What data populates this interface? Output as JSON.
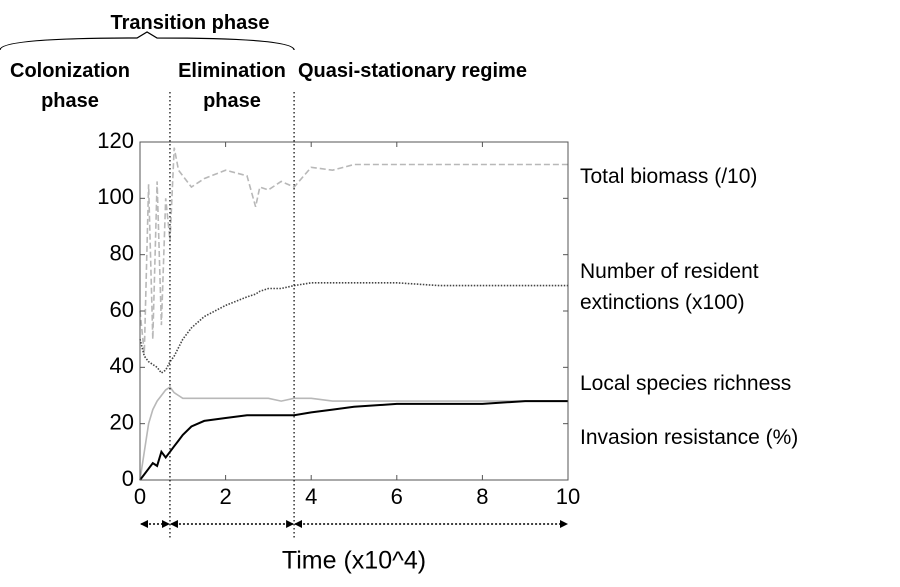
{
  "chart_data": {
    "type": "line",
    "xlabel": "Time (x10^4)",
    "x": [
      0,
      0.1,
      0.2,
      0.3,
      0.4,
      0.5,
      0.6,
      0.7,
      0.8,
      0.9,
      1.0,
      1.2,
      1.5,
      2.0,
      2.5,
      2.7,
      2.8,
      3.0,
      3.3,
      3.6,
      4.0,
      4.5,
      5,
      6,
      7,
      8,
      9,
      10
    ],
    "series": [
      {
        "name": "Total biomass (/10)",
        "color": "#b8b8b8",
        "dash": "dashed",
        "values": [
          60,
          45,
          105,
          50,
          106,
          55,
          100,
          85,
          118,
          110,
          108,
          104,
          107,
          110,
          108,
          97,
          104,
          103,
          106,
          104,
          111,
          110,
          112,
          112,
          112,
          112,
          112,
          112
        ]
      },
      {
        "name": "Number of resident extinctions (x100)",
        "color": "#444444",
        "dash": "dotted",
        "values": [
          50,
          44,
          42,
          41,
          40,
          38,
          39,
          42,
          44,
          47,
          50,
          54,
          58,
          62,
          65,
          66,
          67,
          68,
          68,
          69,
          70,
          70,
          70,
          70,
          69,
          69,
          69,
          69
        ]
      },
      {
        "name": "Local species richness",
        "color": "#b8b8b8",
        "dash": "solid",
        "values": [
          0,
          10,
          20,
          25,
          28,
          30,
          32,
          33,
          31,
          30,
          29,
          29,
          29,
          29,
          29,
          29,
          29,
          29,
          28,
          29,
          29,
          28,
          28,
          28,
          28,
          28,
          28,
          28
        ]
      },
      {
        "name": "Invasion resistance (%)",
        "color": "#000000",
        "dash": "solid",
        "values": [
          0,
          2,
          4,
          6,
          5,
          10,
          8,
          10,
          12,
          14,
          16,
          19,
          21,
          22,
          23,
          23,
          23,
          23,
          23,
          23,
          24,
          25,
          26,
          27,
          27,
          27,
          28,
          28
        ]
      }
    ],
    "xlim": [
      0,
      10
    ],
    "xticks": [
      0,
      2,
      4,
      6,
      8,
      10
    ],
    "ylim": [
      0,
      120
    ],
    "yticks": [
      0,
      20,
      40,
      60,
      80,
      100,
      120
    ],
    "annotations": {
      "transition": "Transition phase",
      "colonization": "Colonization phase",
      "elimination": "Elimination phase",
      "quasi": "Quasi-stationary regime"
    },
    "phase_boundaries": [
      0.7,
      3.6
    ]
  }
}
